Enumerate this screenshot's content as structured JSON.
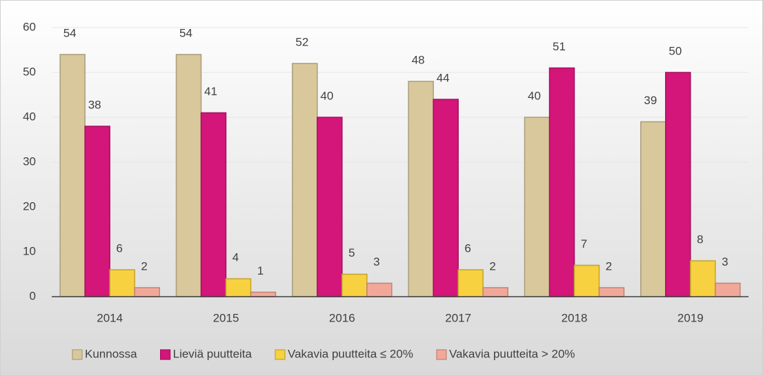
{
  "chart_data": {
    "type": "bar",
    "categories": [
      "2014",
      "2015",
      "2016",
      "2017",
      "2018",
      "2019"
    ],
    "series": [
      {
        "name": "Kunnossa",
        "color": "#d9c89c",
        "values": [
          54,
          54,
          52,
          48,
          40,
          39
        ]
      },
      {
        "name": "Lieviä puutteita",
        "color": "#d4157a",
        "values": [
          38,
          41,
          40,
          44,
          51,
          50
        ]
      },
      {
        "name": "Vakavia puutteita ≤ 20%",
        "color": "#f7d13f",
        "values": [
          6,
          4,
          5,
          6,
          7,
          8
        ]
      },
      {
        "name": "Vakavia puutteita > 20%",
        "color": "#f2a898",
        "values": [
          2,
          1,
          3,
          2,
          2,
          3
        ]
      }
    ],
    "ylim": [
      0,
      60
    ],
    "yticks": [
      0,
      10,
      20,
      30,
      40,
      50,
      60
    ],
    "grid": true,
    "legend": "bottom"
  }
}
